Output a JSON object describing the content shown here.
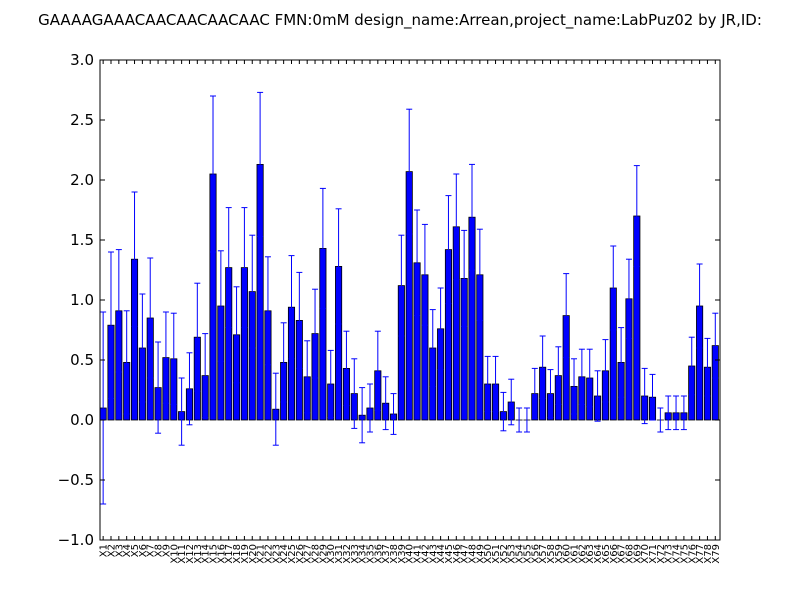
{
  "chart_data": {
    "type": "bar",
    "title": "GAAAAGAAACAACAACAACAAC  FMN:0mM  design_name:Arrean,project_name:LabPuz02 by JR,ID:",
    "xlabel": "",
    "ylabel": "",
    "ylim": [
      -1.0,
      3.0
    ],
    "yticks": [
      "3.0",
      "2.5",
      "2.0",
      "1.5",
      "1.0",
      "0.5",
      "0.0",
      "−0.5",
      "−1.0"
    ],
    "ytick_values": [
      3.0,
      2.5,
      2.0,
      1.5,
      1.0,
      0.5,
      0.0,
      -0.5,
      -1.0
    ],
    "bar_color": "#0000ff",
    "error_color": "#0000ff",
    "grid": false,
    "categories": [
      "X1",
      "X2",
      "X3",
      "X4",
      "X5",
      "X6",
      "X7",
      "X8",
      "X9",
      "X10",
      "X11",
      "X12",
      "X13",
      "X14",
      "X15",
      "X16",
      "X17",
      "X18",
      "X19",
      "X20",
      "X21",
      "X22",
      "X23",
      "X24",
      "X25",
      "X26",
      "X27",
      "X28",
      "X29",
      "X30",
      "X31",
      "X32",
      "X33",
      "X34",
      "X35",
      "X36",
      "X37",
      "X38",
      "X39",
      "X40",
      "X41",
      "X42",
      "X43",
      "X44",
      "X45",
      "X46",
      "X47",
      "X48",
      "X49",
      "X50",
      "X51",
      "X52",
      "X53",
      "X54",
      "X55",
      "X56",
      "X57",
      "X58",
      "X59",
      "X60",
      "X61",
      "X62",
      "X63",
      "X64",
      "X65",
      "X66",
      "X67",
      "X68",
      "X69",
      "X70",
      "X71",
      "X72",
      "X73",
      "X74",
      "X75",
      "X76",
      "X77",
      "X78",
      "X79"
    ],
    "values": [
      0.1,
      0.79,
      0.91,
      0.48,
      1.34,
      0.6,
      0.85,
      0.27,
      0.52,
      0.51,
      0.07,
      0.26,
      0.69,
      0.37,
      2.05,
      0.95,
      1.27,
      0.71,
      1.27,
      1.07,
      2.13,
      0.91,
      0.09,
      0.48,
      0.94,
      0.83,
      0.36,
      0.72,
      1.43,
      0.3,
      1.28,
      0.43,
      0.22,
      0.04,
      0.1,
      0.41,
      0.14,
      0.05,
      1.12,
      2.07,
      1.31,
      1.21,
      0.6,
      0.76,
      1.42,
      1.61,
      1.18,
      1.69,
      1.21,
      0.3,
      0.3,
      0.07,
      0.15,
      0.0,
      0.0,
      0.22,
      0.44,
      0.22,
      0.37,
      0.87,
      0.28,
      0.36,
      0.35,
      0.2,
      0.41,
      1.1,
      0.48,
      1.01,
      1.7,
      0.2,
      0.19,
      0.0,
      0.06,
      0.06,
      0.06,
      0.45,
      0.95,
      0.44,
      0.62
    ],
    "errors": [
      0.8,
      0.61,
      0.51,
      0.43,
      0.56,
      0.45,
      0.5,
      0.38,
      0.38,
      0.38,
      0.28,
      0.3,
      0.45,
      0.35,
      0.65,
      0.46,
      0.5,
      0.4,
      0.5,
      0.47,
      0.6,
      0.45,
      0.3,
      0.33,
      0.43,
      0.4,
      0.3,
      0.37,
      0.5,
      0.28,
      0.48,
      0.31,
      0.29,
      0.23,
      0.2,
      0.33,
      0.22,
      0.17,
      0.42,
      0.52,
      0.44,
      0.42,
      0.32,
      0.34,
      0.45,
      0.44,
      0.4,
      0.44,
      0.38,
      0.23,
      0.23,
      0.16,
      0.19,
      0.1,
      0.1,
      0.21,
      0.26,
      0.2,
      0.24,
      0.35,
      0.23,
      0.23,
      0.24,
      0.21,
      0.26,
      0.35,
      0.29,
      0.33,
      0.42,
      0.23,
      0.19,
      0.1,
      0.14,
      0.14,
      0.14,
      0.24,
      0.35,
      0.24,
      0.27
    ]
  }
}
